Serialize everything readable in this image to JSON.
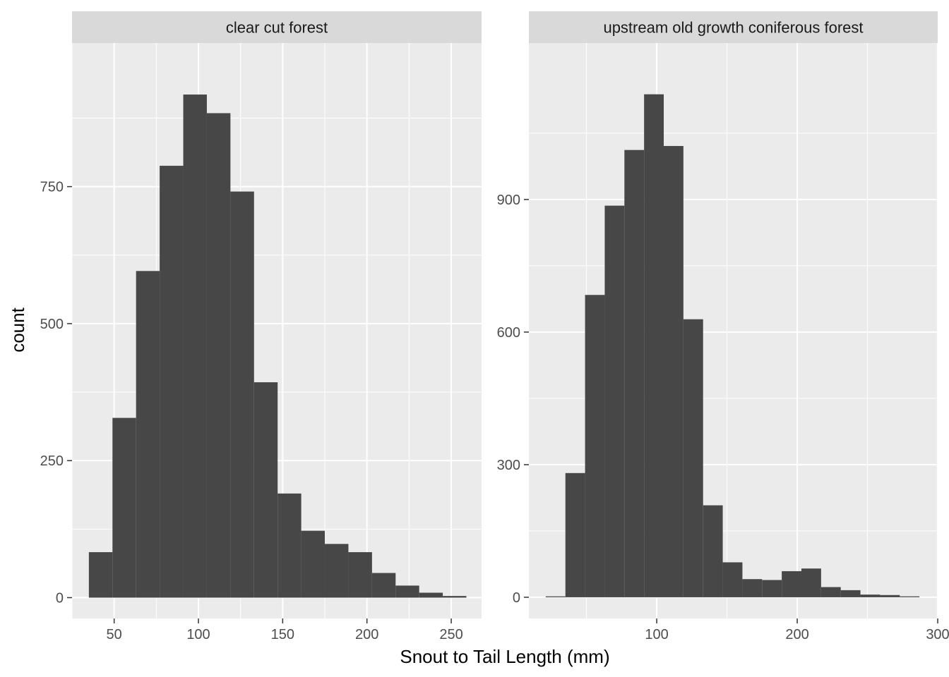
{
  "chart_data": [
    {
      "type": "bar",
      "facet": "clear cut forest",
      "xlim": [
        25,
        268
      ],
      "ylim": [
        -38,
        1012
      ],
      "x_ticks": [
        50,
        100,
        150,
        200,
        250
      ],
      "y_ticks": [
        0,
        250,
        500,
        750
      ],
      "bin_width": 14,
      "bin_starts": [
        35,
        49,
        63,
        77,
        91,
        105,
        119,
        133,
        147,
        161,
        175,
        189,
        203,
        217,
        231,
        245
      ],
      "values": [
        83,
        328,
        596,
        788,
        918,
        884,
        741,
        393,
        190,
        122,
        98,
        83,
        45,
        22,
        9,
        3
      ],
      "grid": true
    },
    {
      "type": "bar",
      "facet": "upstream old growth coniferous forest",
      "xlim": [
        9,
        300
      ],
      "ylim": [
        -48,
        1254
      ],
      "x_ticks": [
        100,
        200,
        300
      ],
      "y_ticks": [
        0,
        300,
        600,
        900
      ],
      "bin_width": 14,
      "bin_starts": [
        21,
        35,
        49,
        63,
        77,
        91,
        105,
        119,
        133,
        147,
        161,
        175,
        189,
        203,
        217,
        231,
        245,
        259,
        273
      ],
      "values": [
        2,
        281,
        684,
        886,
        1012,
        1138,
        1021,
        629,
        208,
        79,
        41,
        39,
        59,
        65,
        23,
        16,
        6,
        5,
        2
      ],
      "grid": true
    }
  ],
  "labels": {
    "xlabel": "Snout to Tail Length (mm)",
    "ylabel": "count"
  },
  "colors": {
    "panel_bg": "#ebebeb",
    "strip_bg": "#d9d9d9",
    "grid_major": "#ffffff",
    "bar_fill": "#474747",
    "tick": "#333333"
  }
}
